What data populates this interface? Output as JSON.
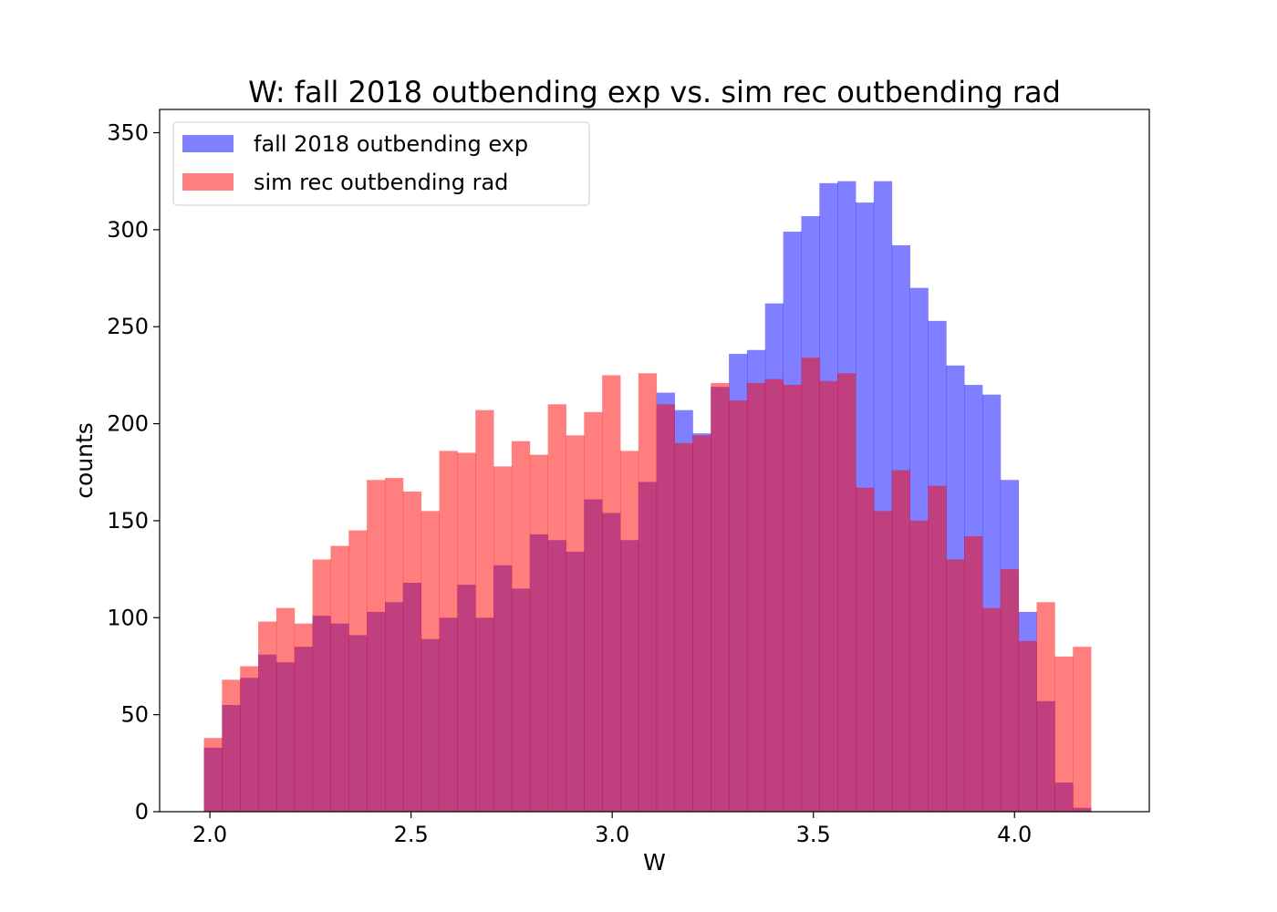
{
  "chart_data": {
    "type": "bar",
    "title": "W: fall 2018 outbending exp  vs. sim rec outbending rad",
    "xlabel": "W",
    "ylabel": "counts",
    "xlim": [
      1.875,
      4.335
    ],
    "ylim": [
      0,
      362
    ],
    "xticks": [
      2.0,
      2.5,
      3.0,
      3.5,
      4.0
    ],
    "xtick_labels": [
      "2.0",
      "2.5",
      "3.0",
      "3.5",
      "4.0"
    ],
    "yticks": [
      0,
      50,
      100,
      150,
      200,
      250,
      300,
      350
    ],
    "ytick_labels": [
      "0",
      "50",
      "100",
      "150",
      "200",
      "250",
      "300",
      "350"
    ],
    "grid": false,
    "legend_position": "top-left",
    "bin_start": 1.985,
    "bin_width": 0.045,
    "series": [
      {
        "name": "fall 2018 outbending exp",
        "color": "#0000ff",
        "alpha": 0.5,
        "values": [
          33,
          55,
          69,
          81,
          77,
          85,
          101,
          97,
          91,
          103,
          108,
          118,
          89,
          100,
          117,
          100,
          127,
          115,
          143,
          140,
          134,
          161,
          154,
          140,
          170,
          216,
          207,
          195,
          219,
          236,
          238,
          262,
          299,
          307,
          324,
          325,
          314,
          325,
          292,
          270,
          253,
          230,
          220,
          215,
          171,
          103,
          57,
          15,
          2
        ]
      },
      {
        "name": "sim rec outbending rad",
        "color": "#ff0000",
        "alpha": 0.5,
        "values": [
          38,
          68,
          75,
          98,
          105,
          97,
          130,
          137,
          145,
          171,
          172,
          165,
          155,
          186,
          185,
          207,
          178,
          191,
          184,
          210,
          194,
          206,
          225,
          186,
          226,
          210,
          190,
          194,
          221,
          212,
          221,
          223,
          220,
          234,
          222,
          226,
          167,
          155,
          176,
          150,
          168,
          130,
          142,
          105,
          125,
          88,
          108,
          80,
          85
        ]
      }
    ]
  }
}
